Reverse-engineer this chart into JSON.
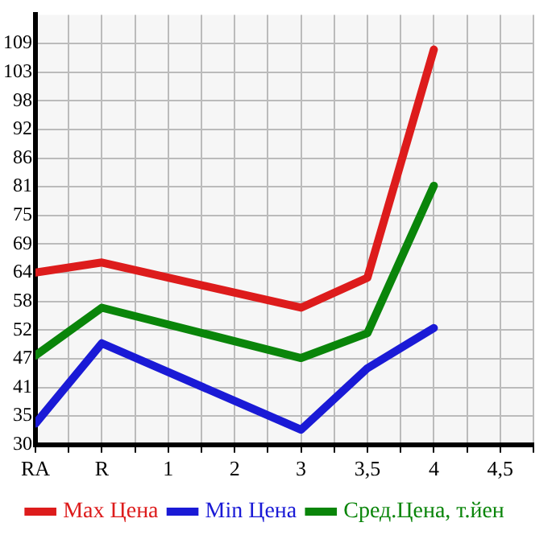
{
  "chart_data": {
    "type": "line",
    "categories": [
      "RA",
      "R",
      "1",
      "2",
      "3",
      "3,5",
      "4",
      "4,5"
    ],
    "series": [
      {
        "name": "Max Цена",
        "color": "#dd1c1c",
        "values": [
          63.7,
          65.7,
          null,
          null,
          56.8,
          62.7,
          107.6,
          null
        ]
      },
      {
        "name": "Min Цена",
        "color": "#1a1ad6",
        "values": [
          34,
          49.8,
          null,
          null,
          32.8,
          44.9,
          52.8,
          null
        ]
      },
      {
        "name": "Сред.Цена, т.йен",
        "color": "#0a850a",
        "values": [
          47.4,
          56.8,
          null,
          null,
          46.9,
          51.8,
          80.8,
          null
        ]
      }
    ],
    "ylim": [
      29.84,
      114.44
    ],
    "yticks": [
      {
        "value": 29.84,
        "label": "30"
      },
      {
        "value": 35.48,
        "label": "35"
      },
      {
        "value": 41.12,
        "label": "41"
      },
      {
        "value": 46.76,
        "label": "47"
      },
      {
        "value": 52.4,
        "label": "52"
      },
      {
        "value": 58.04,
        "label": "58"
      },
      {
        "value": 63.68,
        "label": "64"
      },
      {
        "value": 69.32,
        "label": "69"
      },
      {
        "value": 74.96,
        "label": "75"
      },
      {
        "value": 80.6,
        "label": "81"
      },
      {
        "value": 86.24,
        "label": "86"
      },
      {
        "value": 91.88,
        "label": "92"
      },
      {
        "value": 97.52,
        "label": "98"
      },
      {
        "value": 103.16,
        "label": "103"
      },
      {
        "value": 108.8,
        "label": "109"
      }
    ],
    "grid": true,
    "legend": "bottom",
    "marker": "none",
    "line_style": "solid"
  }
}
